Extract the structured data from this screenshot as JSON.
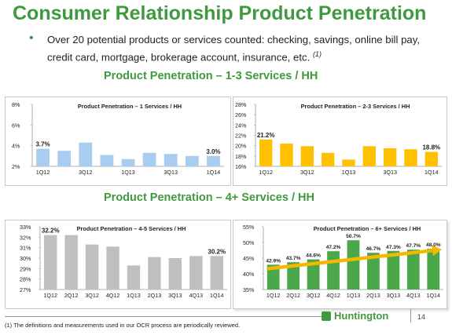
{
  "header": {
    "title": "Consumer Relationship Product Penetration",
    "bullet_text": "Over 20 potential products or services counted: checking, savings, online bill pay, credit card, mortgage, brokerage account, insurance, etc.",
    "bullet_ref": "(1)"
  },
  "sections": {
    "top": "Product Penetration – 1-3 Services / HH",
    "bottom": "Product Penetration – 4+ Services / HH"
  },
  "footer": {
    "footnote": "(1) The definitions and measurements used in our OCR process are periodically reviewed.",
    "brand": "Huntington",
    "page": "14"
  },
  "colors": {
    "green": "#3f9a3f",
    "blue_bar": "#a9cdf0",
    "yellow_bar": "#ffc000",
    "gray_bar": "#bfbfbf",
    "green_bar": "#4aa84a",
    "arrow": "#f5b800"
  },
  "chart_data": [
    {
      "id": "c1",
      "type": "bar",
      "title": "Product Penetration – 1 Services / HH",
      "categories": [
        "1Q12",
        "2Q12",
        "3Q12",
        "4Q12",
        "1Q13",
        "2Q13",
        "3Q13",
        "4Q13",
        "1Q14"
      ],
      "x_tick_labels": [
        "1Q12",
        "",
        "3Q12",
        "",
        "1Q13",
        "",
        "3Q13",
        "",
        "1Q14"
      ],
      "values": [
        3.7,
        3.5,
        4.3,
        3.1,
        2.7,
        3.3,
        3.2,
        3.0,
        3.0
      ],
      "value_labels": [
        "3.7%",
        "",
        "",
        "",
        "",
        "",
        "",
        "",
        "3.0%"
      ],
      "ylim": [
        2,
        8
      ],
      "yticks": [
        2,
        4,
        6,
        8
      ],
      "ytick_labels": [
        "2%",
        "4%",
        "6%",
        "8%"
      ],
      "color": "#a9cdf0",
      "grid": false
    },
    {
      "id": "c2",
      "type": "bar",
      "title": "Product Penetration – 2-3 Services / HH",
      "categories": [
        "1Q12",
        "2Q12",
        "3Q12",
        "4Q12",
        "1Q13",
        "2Q13",
        "3Q13",
        "4Q13",
        "1Q14"
      ],
      "x_tick_labels": [
        "1Q12",
        "",
        "3Q12",
        "",
        "1Q13",
        "",
        "3Q13",
        "",
        "1Q14"
      ],
      "values": [
        21.2,
        20.4,
        19.9,
        18.6,
        17.3,
        19.9,
        19.5,
        19.3,
        18.8
      ],
      "value_labels": [
        "21.2%",
        "",
        "",
        "",
        "",
        "",
        "",
        "",
        "18.8%"
      ],
      "ylim": [
        16,
        28
      ],
      "yticks": [
        16,
        18,
        20,
        22,
        24,
        26,
        28
      ],
      "ytick_labels": [
        "16%",
        "18%",
        "20%",
        "22%",
        "24%",
        "26%",
        "28%"
      ],
      "color": "#ffc000",
      "grid": false
    },
    {
      "id": "c3",
      "type": "bar",
      "title": "Product Penetration – 4-5 Services / HH",
      "categories": [
        "1Q12",
        "2Q12",
        "3Q12",
        "4Q12",
        "1Q13",
        "2Q13",
        "3Q13",
        "4Q13",
        "1Q14"
      ],
      "x_tick_labels": [
        "1Q12",
        "2Q12",
        "3Q12",
        "4Q12",
        "1Q13",
        "2Q13",
        "3Q13",
        "4Q13",
        "1Q14"
      ],
      "values": [
        32.2,
        32.2,
        31.3,
        31.1,
        29.3,
        30.1,
        30.0,
        30.2,
        30.2
      ],
      "value_labels": [
        "32.2%",
        "",
        "",
        "",
        "",
        "",
        "",
        "",
        "30.2%"
      ],
      "ylim": [
        27,
        33
      ],
      "yticks": [
        27,
        28,
        29,
        30,
        31,
        32,
        33
      ],
      "ytick_labels": [
        "27%",
        "28%",
        "29%",
        "30%",
        "31%",
        "32%",
        "33%"
      ],
      "color": "#bfbfbf",
      "grid": false
    },
    {
      "id": "c4",
      "type": "bar",
      "title": "Product Penetration – 6+ Services / HH",
      "categories": [
        "1Q12",
        "2Q12",
        "3Q12",
        "4Q12",
        "1Q13",
        "2Q13",
        "3Q13",
        "4Q13",
        "1Q14"
      ],
      "x_tick_labels": [
        "1Q12",
        "2Q12",
        "3Q12",
        "4Q12",
        "1Q13",
        "2Q13",
        "3Q13",
        "4Q13",
        "1Q14"
      ],
      "values": [
        42.9,
        43.7,
        44.6,
        47.2,
        50.7,
        46.7,
        47.3,
        47.7,
        48.0
      ],
      "value_labels": [
        "42.9%",
        "43.7%",
        "44.6%",
        "47.2%",
        "50.7%",
        "46.7%",
        "47.3%",
        "47.7%",
        "48.0%"
      ],
      "ylim": [
        35,
        55
      ],
      "yticks": [
        35,
        40,
        45,
        50,
        55
      ],
      "ytick_labels": [
        "35%",
        "40%",
        "45%",
        "50%",
        "55%"
      ],
      "color": "#4aa84a",
      "trend_arrow": true,
      "trend_from": 42.9,
      "trend_to": 48.0,
      "grid": false
    }
  ]
}
